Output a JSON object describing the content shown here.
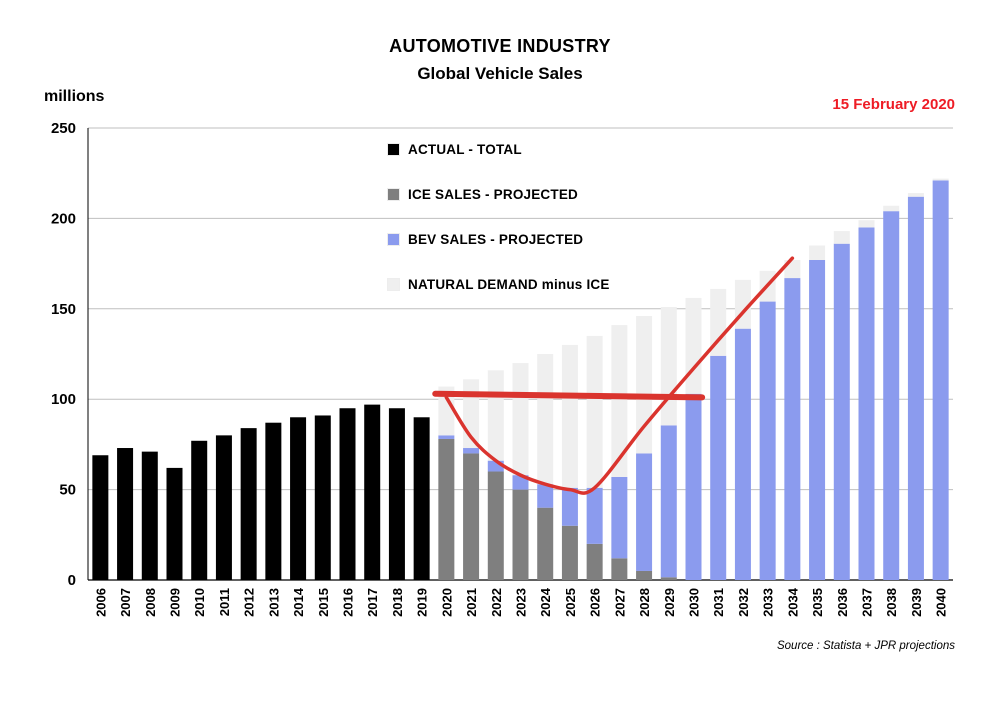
{
  "title": {
    "line1": "AUTOMOTIVE INDUSTRY",
    "line2": "Global Vehicle Sales"
  },
  "date_label": "15 February 2020",
  "unit_label": "millions",
  "source_label": "Source : Statista + JPR projections",
  "colors": {
    "date": "#ee1c25",
    "annotation": "#da342e",
    "gridline": "#bfbfbf",
    "axis": "#000000",
    "background": "#ffffff"
  },
  "chart_data": {
    "type": "bar",
    "stacked": true,
    "title": "AUTOMOTIVE INDUSTRY - Global Vehicle Sales",
    "xlabel": "",
    "ylabel": "millions",
    "ylim": [
      0,
      250
    ],
    "yticks": [
      0,
      50,
      100,
      150,
      200,
      250
    ],
    "grid": true,
    "legend_position": "inside-top-center-left",
    "categories": [
      "2006",
      "2007",
      "2008",
      "2009",
      "2010",
      "2011",
      "2012",
      "2013",
      "2014",
      "2015",
      "2016",
      "2017",
      "2018",
      "2019",
      "2020",
      "2021",
      "2022",
      "2023",
      "2024",
      "2025",
      "2026",
      "2027",
      "2028",
      "2029",
      "2030",
      "2031",
      "2032",
      "2033",
      "2034",
      "2035",
      "2036",
      "2037",
      "2038",
      "2039",
      "2040"
    ],
    "series": [
      {
        "name": "ACTUAL - TOTAL",
        "color": "#000000",
        "values": [
          69,
          73,
          71,
          62,
          77,
          80,
          84,
          87,
          90,
          91,
          95,
          97,
          95,
          90,
          0,
          0,
          0,
          0,
          0,
          0,
          0,
          0,
          0,
          0,
          0,
          0,
          0,
          0,
          0,
          0,
          0,
          0,
          0,
          0,
          0
        ]
      },
      {
        "name": "ICE SALES - PROJECTED",
        "color": "#7f7f7f",
        "values": [
          0,
          0,
          0,
          0,
          0,
          0,
          0,
          0,
          0,
          0,
          0,
          0,
          0,
          0,
          78,
          70,
          60,
          50,
          40,
          30,
          20,
          12,
          5,
          1.5,
          0,
          0,
          0,
          0,
          0,
          0,
          0,
          0,
          0,
          0,
          0
        ]
      },
      {
        "name": "BEV SALES - PROJECTED",
        "color": "#8b9bee",
        "values": [
          0,
          0,
          0,
          0,
          0,
          0,
          0,
          0,
          0,
          0,
          0,
          0,
          0,
          0,
          2,
          3,
          6,
          8,
          13,
          21,
          31,
          45,
          65,
          84,
          103,
          124,
          139,
          154,
          167,
          177,
          186,
          195,
          204,
          212,
          221
        ]
      },
      {
        "name": "NATURAL DEMAND minus ICE",
        "color": "#efefef",
        "values": [
          0,
          0,
          0,
          0,
          0,
          0,
          0,
          0,
          0,
          0,
          0,
          0,
          0,
          0,
          27,
          38,
          50,
          62,
          72,
          79,
          84,
          84,
          76,
          65.5,
          53,
          37,
          27,
          17,
          10,
          8,
          7,
          4,
          3,
          2,
          1
        ]
      }
    ],
    "annotations": {
      "hline": {
        "cat_start": "2020",
        "cat_end": "2030",
        "value_start": 103,
        "value_end": 101,
        "width": 6
      },
      "curve": {
        "width": 3.5,
        "points": [
          [
            "2020",
            101
          ],
          [
            "2021",
            79
          ],
          [
            "2022",
            66
          ],
          [
            "2023",
            58
          ],
          [
            "2024",
            53
          ],
          [
            "2025",
            50
          ],
          [
            "2026",
            51
          ],
          [
            "2028",
            85
          ],
          [
            "2030",
            117
          ],
          [
            "2032",
            148
          ],
          [
            "2034",
            178
          ]
        ]
      }
    }
  }
}
